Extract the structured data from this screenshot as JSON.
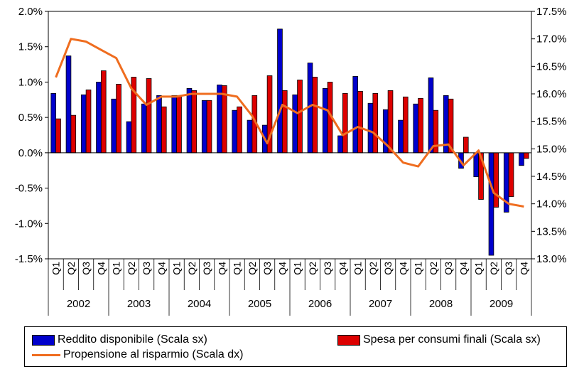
{
  "chart_data": {
    "type": "bar",
    "categories": [
      "Q1",
      "Q2",
      "Q3",
      "Q4",
      "Q1",
      "Q2",
      "Q3",
      "Q4",
      "Q1",
      "Q2",
      "Q3",
      "Q4",
      "Q1",
      "Q2",
      "Q3",
      "Q4",
      "Q1",
      "Q2",
      "Q3",
      "Q4",
      "Q1",
      "Q2",
      "Q3",
      "Q4",
      "Q1",
      "Q2",
      "Q3",
      "Q4",
      "Q1",
      "Q2",
      "Q3",
      "Q4"
    ],
    "years": [
      "2002",
      "2003",
      "2004",
      "2005",
      "2006",
      "2007",
      "2008",
      "2009"
    ],
    "series": [
      {
        "name": "Reddito disponibile (Scala sx)",
        "axis": "left",
        "kind": "bar",
        "color": "#0000cc",
        "values": [
          0.84,
          1.37,
          0.82,
          1.0,
          0.76,
          0.44,
          0.69,
          0.81,
          0.81,
          0.91,
          0.74,
          0.96,
          0.6,
          0.46,
          0.39,
          1.75,
          0.82,
          1.27,
          0.91,
          0.24,
          1.08,
          0.7,
          0.61,
          0.46,
          0.69,
          1.06,
          0.81,
          -0.22,
          -0.34,
          -1.45,
          -0.84,
          -0.18
        ]
      },
      {
        "name": "Spesa per consumi finali (Scala sx)",
        "axis": "left",
        "kind": "bar",
        "color": "#dd0000",
        "values": [
          0.48,
          0.53,
          0.89,
          1.16,
          0.97,
          1.07,
          1.05,
          0.65,
          0.81,
          0.88,
          0.74,
          0.95,
          0.65,
          0.81,
          1.09,
          0.88,
          1.03,
          1.07,
          1.0,
          0.84,
          0.87,
          0.84,
          0.88,
          0.79,
          0.77,
          0.6,
          0.76,
          0.22,
          -0.66,
          -0.77,
          -0.62,
          -0.08
        ]
      },
      {
        "name": "Propensione al risparmio (Scala dx)",
        "axis": "right",
        "kind": "line",
        "color": "#ef6d1f",
        "values": [
          16.3,
          17.0,
          16.95,
          16.8,
          16.65,
          16.1,
          15.8,
          15.95,
          15.95,
          16.0,
          16.0,
          16.0,
          15.95,
          15.6,
          15.1,
          15.8,
          15.65,
          15.8,
          15.7,
          15.25,
          15.4,
          15.3,
          15.05,
          14.75,
          14.68,
          15.05,
          15.08,
          14.7,
          14.97,
          14.2,
          14.0,
          13.95
        ]
      }
    ],
    "ylim_left": [
      -1.5,
      2.0
    ],
    "ylim_right": [
      13.0,
      17.5
    ],
    "yticks_left": [
      "2.0%",
      "1.5%",
      "1.0%",
      "0.5%",
      "0.0%",
      "-0.5%",
      "-1.0%",
      "-1.5%"
    ],
    "yticks_right": [
      "17.5%",
      "17.0%",
      "16.5%",
      "16.0%",
      "15.5%",
      "15.0%",
      "14.5%",
      "14.0%",
      "13.5%",
      "13.0%"
    ],
    "grid": false,
    "legend_position": "bottom"
  },
  "legend": {
    "bar1": "Reddito disponibile (Scala sx)",
    "bar2": "Spesa per consumi finali (Scala sx)",
    "line": "Propensione al risparmio (Scala dx)"
  },
  "colors": {
    "bar1": "#0000cc",
    "bar2": "#dd0000",
    "line": "#ef6d1f"
  }
}
